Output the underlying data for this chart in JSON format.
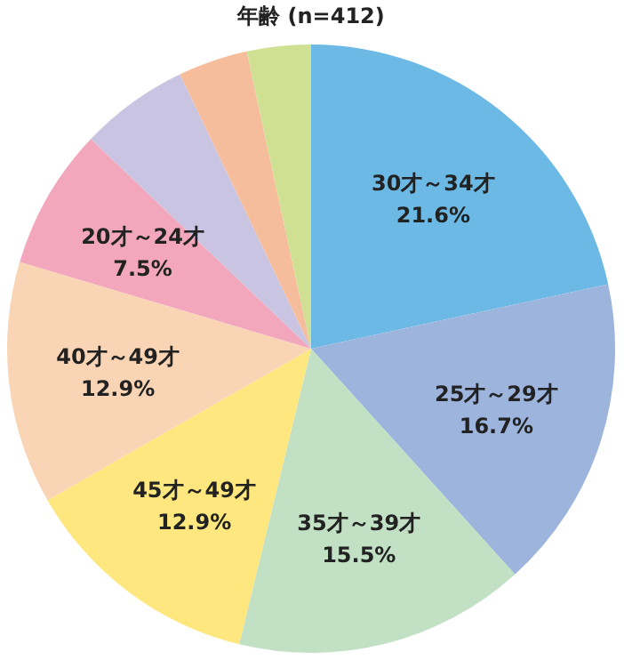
{
  "chart_data": {
    "type": "pie",
    "title": "年齢 (n=412)",
    "categories": [
      "30才～34才",
      "25才～29才",
      "35才～39才",
      "45才～49才",
      "40才～49才",
      "20才～24才",
      null,
      null,
      null
    ],
    "values": [
      21.6,
      16.7,
      15.5,
      12.9,
      12.9,
      7.5,
      5.8,
      3.7,
      3.4
    ],
    "value_labels": [
      "21.6%",
      "16.7%",
      "15.5%",
      "12.9%",
      "12.9%",
      "7.5%",
      null,
      null,
      null
    ],
    "colors": [
      "#6cb9e6",
      "#9db5dd",
      "#c1e0c4",
      "#fde77e",
      "#f9d5b6",
      "#f2a7bd",
      "#c8c4e2",
      "#f6bd9d",
      "#d0e093"
    ]
  }
}
